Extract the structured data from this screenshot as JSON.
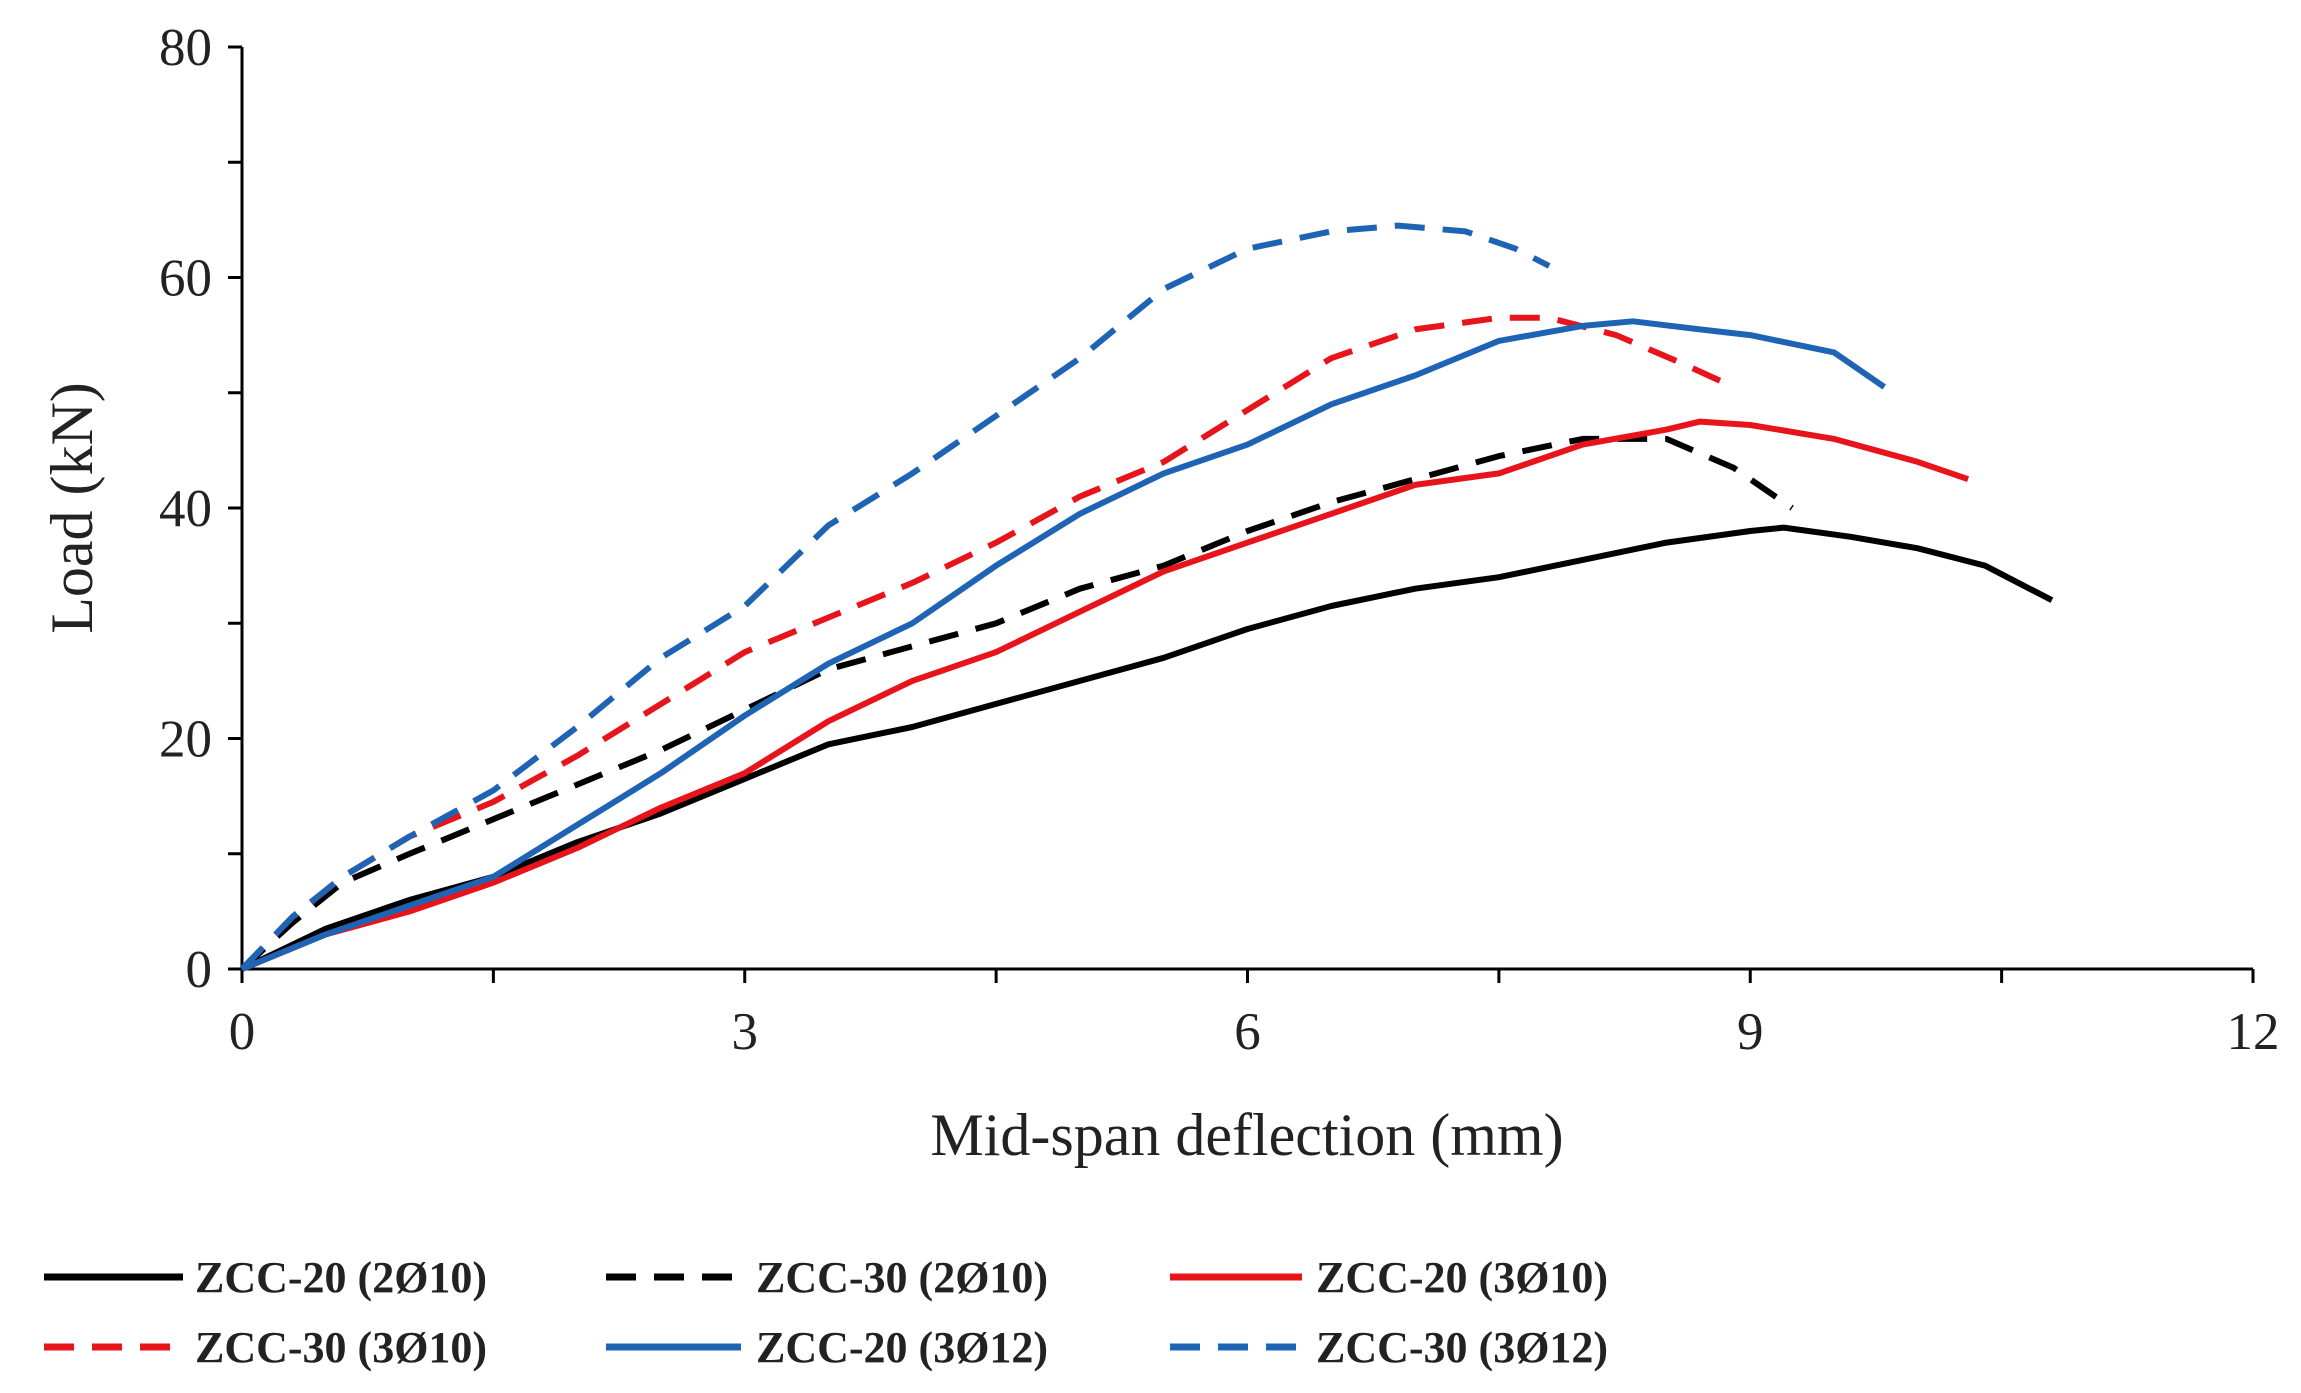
{
  "chart_data": {
    "type": "line",
    "title": "",
    "xlabel": "Mid-span deflection (mm)",
    "ylabel": "Load (kN)",
    "xlim": [
      0,
      12
    ],
    "ylim": [
      0,
      80
    ],
    "xticks": [
      0,
      3,
      6,
      9,
      12
    ],
    "yticks": [
      0,
      20,
      40,
      60,
      80
    ],
    "x_ticks_labels": [
      "0",
      "3",
      "6",
      "9",
      "12"
    ],
    "y_ticks_labels": [
      "0",
      "20",
      "40",
      "60",
      "80"
    ],
    "grid": false,
    "legend_position": "bottom",
    "series": [
      {
        "name": "ZCC-20 (2Ø10)",
        "color": "#000000",
        "dash": false,
        "points": [
          [
            0,
            0
          ],
          [
            0.5,
            3.5
          ],
          [
            1,
            6
          ],
          [
            1.5,
            8
          ],
          [
            2,
            11
          ],
          [
            2.5,
            13.5
          ],
          [
            3,
            16.5
          ],
          [
            3.5,
            19.5
          ],
          [
            4,
            21
          ],
          [
            4.5,
            23
          ],
          [
            5,
            25
          ],
          [
            5.5,
            27
          ],
          [
            6,
            29.5
          ],
          [
            6.5,
            31.5
          ],
          [
            7,
            33
          ],
          [
            7.5,
            34
          ],
          [
            8,
            35.5
          ],
          [
            8.5,
            37
          ],
          [
            9,
            38
          ],
          [
            9.2,
            38.3
          ],
          [
            9.6,
            37.5
          ],
          [
            10,
            36.5
          ],
          [
            10.4,
            35
          ],
          [
            10.6,
            33.5
          ],
          [
            10.8,
            32
          ]
        ]
      },
      {
        "name": "ZCC-30 (2Ø10)",
        "color": "#000000",
        "dash": true,
        "points": [
          [
            0,
            0
          ],
          [
            0.3,
            4
          ],
          [
            0.6,
            7.5
          ],
          [
            1,
            10
          ],
          [
            1.5,
            13
          ],
          [
            2,
            16
          ],
          [
            2.5,
            19
          ],
          [
            3,
            22.5
          ],
          [
            3.5,
            26
          ],
          [
            4,
            28
          ],
          [
            4.5,
            30
          ],
          [
            5,
            33
          ],
          [
            5.5,
            35
          ],
          [
            6,
            38
          ],
          [
            6.5,
            40.5
          ],
          [
            7,
            42.5
          ],
          [
            7.5,
            44.5
          ],
          [
            8,
            46
          ],
          [
            8.5,
            46
          ],
          [
            8.9,
            43.5
          ],
          [
            9.25,
            40
          ]
        ]
      },
      {
        "name": "ZCC-20 (3Ø10)",
        "color": "#e8141c",
        "dash": false,
        "points": [
          [
            0,
            0
          ],
          [
            0.5,
            3
          ],
          [
            1,
            5
          ],
          [
            1.5,
            7.5
          ],
          [
            2,
            10.5
          ],
          [
            2.5,
            14
          ],
          [
            3,
            17
          ],
          [
            3.5,
            21.5
          ],
          [
            4,
            25
          ],
          [
            4.5,
            27.5
          ],
          [
            5,
            31
          ],
          [
            5.5,
            34.5
          ],
          [
            6,
            37
          ],
          [
            6.5,
            39.5
          ],
          [
            7,
            42
          ],
          [
            7.5,
            43
          ],
          [
            8,
            45.5
          ],
          [
            8.5,
            46.8
          ],
          [
            8.7,
            47.5
          ],
          [
            9,
            47.2
          ],
          [
            9.5,
            46
          ],
          [
            10,
            44
          ],
          [
            10.3,
            42.5
          ]
        ]
      },
      {
        "name": "ZCC-30 (3Ø10)",
        "color": "#e8141c",
        "dash": true,
        "points": [
          [
            0,
            0
          ],
          [
            0.3,
            4.5
          ],
          [
            0.6,
            8
          ],
          [
            1,
            11.5
          ],
          [
            1.5,
            14.5
          ],
          [
            2,
            18.5
          ],
          [
            2.5,
            23
          ],
          [
            3,
            27.5
          ],
          [
            3.5,
            30.5
          ],
          [
            4,
            33.5
          ],
          [
            4.5,
            37
          ],
          [
            5,
            41
          ],
          [
            5.5,
            44
          ],
          [
            6,
            48.5
          ],
          [
            6.5,
            53
          ],
          [
            7,
            55.5
          ],
          [
            7.5,
            56.5
          ],
          [
            7.8,
            56.5
          ],
          [
            8.2,
            55
          ],
          [
            8.6,
            52.5
          ],
          [
            8.9,
            50.5
          ]
        ]
      },
      {
        "name": "ZCC-20 (3Ø12)",
        "color": "#1f64b4",
        "dash": false,
        "points": [
          [
            0,
            0
          ],
          [
            0.5,
            3
          ],
          [
            1,
            5.5
          ],
          [
            1.5,
            8
          ],
          [
            2,
            12.5
          ],
          [
            2.5,
            17
          ],
          [
            3,
            22
          ],
          [
            3.5,
            26.5
          ],
          [
            4,
            30
          ],
          [
            4.5,
            35
          ],
          [
            5,
            39.5
          ],
          [
            5.5,
            43
          ],
          [
            6,
            45.5
          ],
          [
            6.5,
            49
          ],
          [
            7,
            51.5
          ],
          [
            7.5,
            54.5
          ],
          [
            8,
            55.8
          ],
          [
            8.3,
            56.2
          ],
          [
            8.7,
            55.5
          ],
          [
            9,
            55
          ],
          [
            9.5,
            53.5
          ],
          [
            9.8,
            50.5
          ]
        ]
      },
      {
        "name": "ZCC-30 (3Ø12)",
        "color": "#1f64b4",
        "dash": true,
        "points": [
          [
            0,
            0
          ],
          [
            0.3,
            4.5
          ],
          [
            0.6,
            8
          ],
          [
            1,
            11.5
          ],
          [
            1.5,
            15.5
          ],
          [
            2,
            21
          ],
          [
            2.5,
            27
          ],
          [
            3,
            31.5
          ],
          [
            3.5,
            38.5
          ],
          [
            4,
            43
          ],
          [
            4.5,
            48
          ],
          [
            5,
            53
          ],
          [
            5.5,
            59
          ],
          [
            6,
            62.5
          ],
          [
            6.5,
            64
          ],
          [
            6.9,
            64.5
          ],
          [
            7.3,
            64
          ],
          [
            7.6,
            62.5
          ],
          [
            7.8,
            61
          ]
        ]
      }
    ]
  }
}
